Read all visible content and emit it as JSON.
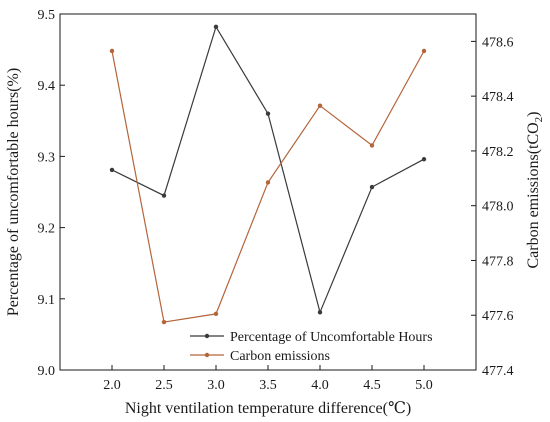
{
  "chart_data": {
    "type": "line",
    "title": "",
    "x": [
      2.0,
      2.5,
      3.0,
      3.5,
      4.0,
      4.5,
      5.0
    ],
    "xlabel": "Night ventilation temperature difference(℃)",
    "xlim": [
      1.5,
      5.5
    ],
    "xticks": [
      "2.0",
      "2.5",
      "3.0",
      "3.5",
      "4.0",
      "4.5",
      "5.0"
    ],
    "y_left": {
      "label": "Percentage of uncomfortable hours(%)",
      "lim": [
        9.0,
        9.5
      ],
      "ticks": [
        "9.0",
        "9.1",
        "9.2",
        "9.3",
        "9.4",
        "9.5"
      ]
    },
    "y_right": {
      "label_main": "Carbon emissions(tCO",
      "label_sub": "2",
      "label_end": ")",
      "lim": [
        477.4,
        478.7
      ],
      "ticks": [
        "477.4",
        "477.6",
        "477.8",
        "478.0",
        "478.2",
        "478.4",
        "478.6"
      ]
    },
    "series": [
      {
        "name": "Percentage of Uncomfortable Hours",
        "axis": "left",
        "color": "#3a3a3a",
        "values": [
          9.281,
          9.245,
          9.482,
          9.36,
          9.081,
          9.257,
          9.296
        ]
      },
      {
        "name": "Carbon emissions",
        "axis": "right",
        "color": "#b5643a",
        "values": [
          478.565,
          477.575,
          477.605,
          478.085,
          478.365,
          478.22,
          478.565
        ]
      }
    ],
    "legend_position": "bottom-right",
    "grid": false
  }
}
